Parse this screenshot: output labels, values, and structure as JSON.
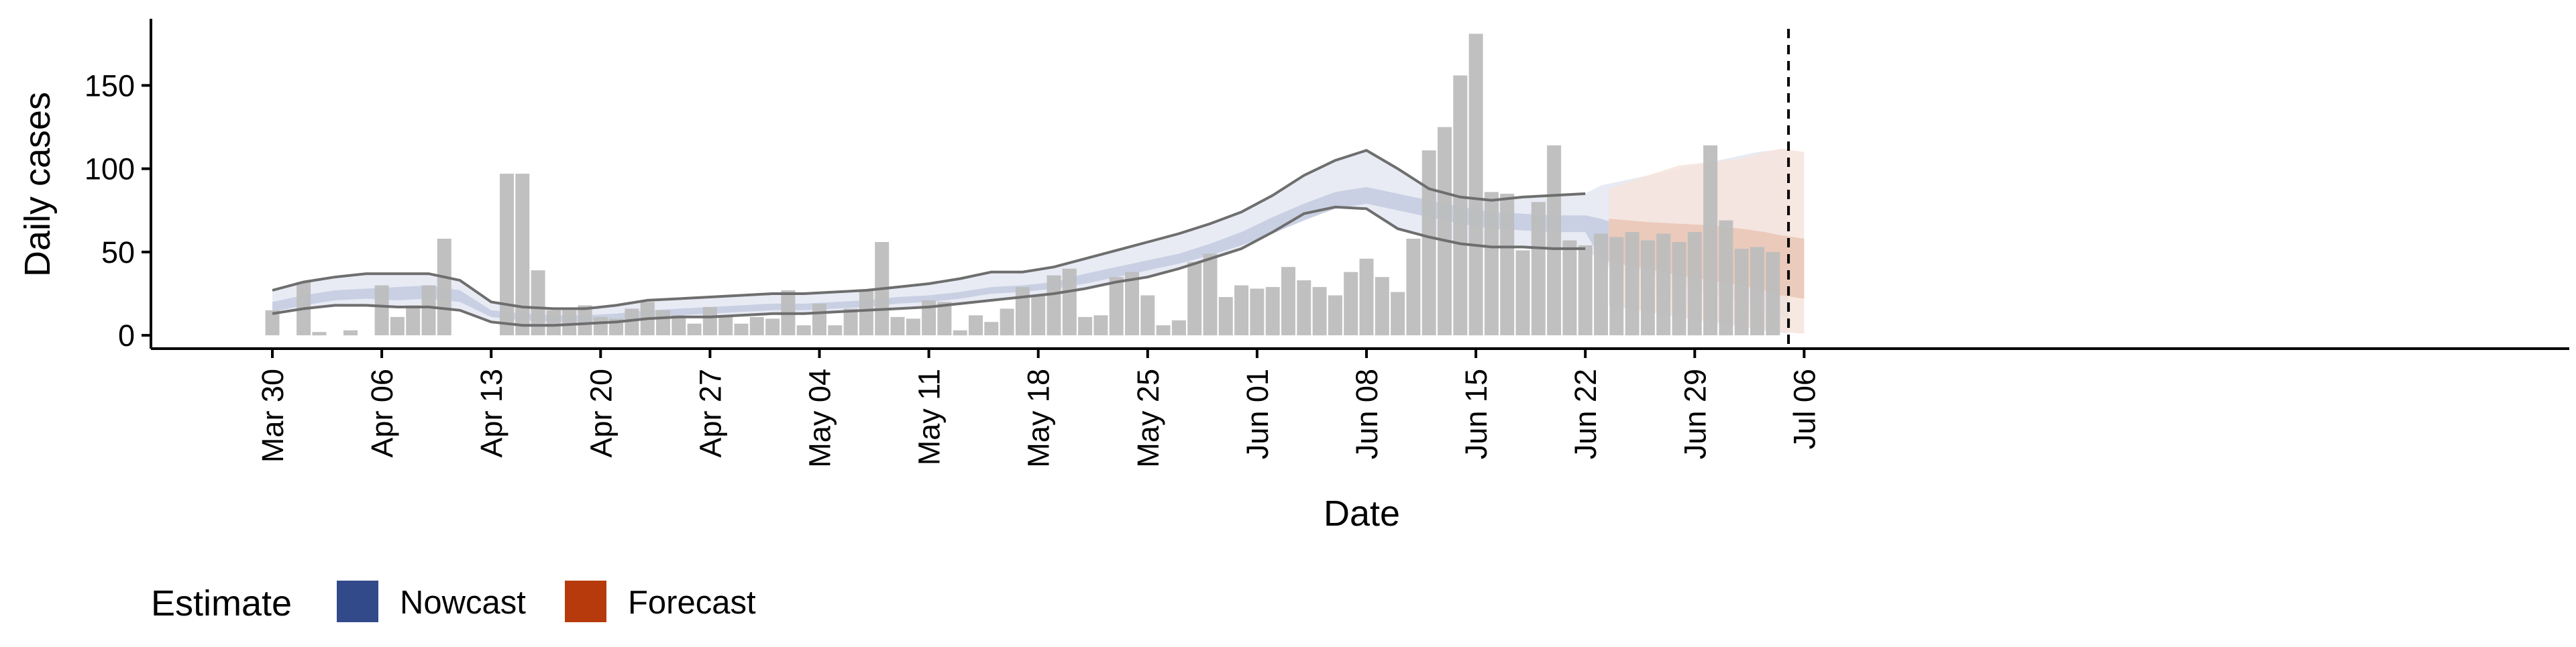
{
  "chart_data": {
    "type": "bar",
    "xlabel": "Date",
    "ylabel": "Daily cases",
    "x_start": "2020-03-30",
    "y_ticks": [
      0,
      50,
      100,
      150
    ],
    "ylim": [
      -8,
      190
    ],
    "x_ticks": [
      {
        "label": "Mar 30",
        "day": 0
      },
      {
        "label": "Apr 06",
        "day": 7
      },
      {
        "label": "Apr 13",
        "day": 14
      },
      {
        "label": "Apr 20",
        "day": 21
      },
      {
        "label": "Apr 27",
        "day": 28
      },
      {
        "label": "May 04",
        "day": 35
      },
      {
        "label": "May 11",
        "day": 42
      },
      {
        "label": "May 18",
        "day": 49
      },
      {
        "label": "May 25",
        "day": 56
      },
      {
        "label": "Jun 01",
        "day": 63
      },
      {
        "label": "Jun 08",
        "day": 70
      },
      {
        "label": "Jun 15",
        "day": 77
      },
      {
        "label": "Jun 22",
        "day": 84
      },
      {
        "label": "Jun 29",
        "day": 91
      },
      {
        "label": "Jul 06",
        "day": 98
      }
    ],
    "reported_cases": [
      15,
      0,
      32,
      2,
      0,
      3,
      0,
      30,
      11,
      18,
      30,
      58,
      0,
      0,
      0,
      97,
      97,
      39,
      15,
      15,
      18,
      11,
      10,
      16,
      20,
      15,
      12,
      7,
      17,
      11,
      7,
      11,
      10,
      27,
      6,
      19,
      6,
      16,
      27,
      56,
      11,
      10,
      21,
      20,
      3,
      12,
      8,
      16,
      29,
      24,
      36,
      40,
      11,
      12,
      35,
      38,
      24,
      6,
      9,
      44,
      49,
      23,
      30,
      28,
      29,
      41,
      33,
      29,
      24,
      38,
      46,
      35,
      26,
      58,
      111,
      125,
      156,
      181,
      86,
      85,
      51,
      80,
      114,
      57,
      54,
      61,
      59,
      62,
      57,
      61,
      56,
      62,
      114,
      69,
      52,
      53,
      50
    ],
    "nowcast": {
      "days": [
        0,
        2,
        4,
        6,
        8,
        10,
        12,
        14,
        16,
        18,
        20,
        22,
        24,
        26,
        28,
        30,
        32,
        34,
        36,
        38,
        40,
        42,
        44,
        46,
        48,
        50,
        52,
        54,
        56,
        58,
        60,
        62,
        64,
        66,
        68,
        70,
        72,
        74,
        76,
        78,
        80,
        82,
        84,
        85,
        86,
        87,
        88,
        89,
        90,
        91,
        92,
        93,
        94,
        95,
        96,
        97
      ],
      "median": [
        17,
        21,
        24,
        25,
        25,
        26,
        23,
        13,
        11,
        10,
        10,
        11,
        13,
        14,
        15,
        16,
        17,
        17,
        18,
        19,
        21,
        22,
        24,
        27,
        28,
        30,
        34,
        38,
        42,
        46,
        51,
        58,
        66,
        74,
        81,
        84,
        80,
        76,
        72,
        69,
        68,
        67,
        67,
        58,
        55,
        52,
        49,
        46,
        43,
        40,
        37,
        34,
        31,
        28,
        25,
        22
      ],
      "mid_low": [
        14,
        18,
        21,
        22,
        21,
        22,
        20,
        11,
        9,
        8,
        8,
        9,
        11,
        12,
        13,
        14,
        15,
        15,
        16,
        17,
        19,
        20,
        22,
        25,
        26,
        28,
        31,
        35,
        39,
        43,
        48,
        54,
        61,
        69,
        76,
        79,
        75,
        71,
        67,
        64,
        63,
        62,
        62,
        46,
        43,
        40,
        37,
        34,
        31,
        28,
        25,
        22,
        19,
        16,
        13,
        10
      ],
      "mid_high": [
        20,
        24,
        27,
        28,
        29,
        30,
        27,
        15,
        13,
        12,
        12,
        13,
        15,
        16,
        17,
        18,
        19,
        19,
        20,
        21,
        23,
        24,
        26,
        29,
        30,
        32,
        37,
        41,
        45,
        49,
        55,
        62,
        71,
        79,
        86,
        89,
        85,
        81,
        77,
        74,
        73,
        72,
        72,
        70,
        67,
        64,
        61,
        58,
        55,
        52,
        49,
        46,
        43,
        40,
        37,
        34
      ],
      "outer_low": [
        13,
        16,
        18,
        18,
        17,
        17,
        15,
        8,
        6,
        6,
        7,
        8,
        10,
        11,
        11,
        12,
        13,
        13,
        14,
        15,
        16,
        17,
        19,
        21,
        23,
        25,
        28,
        32,
        35,
        40,
        46,
        52,
        62,
        73,
        77,
        76,
        64,
        59,
        55,
        53,
        53,
        52,
        52,
        44,
        38,
        33,
        28,
        24,
        20,
        16,
        12,
        9,
        6,
        4,
        2,
        1
      ],
      "outer_high": [
        27,
        32,
        35,
        37,
        37,
        37,
        33,
        20,
        17,
        16,
        16,
        18,
        21,
        22,
        23,
        24,
        25,
        25,
        26,
        27,
        29,
        31,
        34,
        38,
        38,
        41,
        46,
        51,
        56,
        61,
        67,
        74,
        84,
        96,
        105,
        111,
        100,
        88,
        83,
        81,
        83,
        84,
        85,
        90,
        92,
        94,
        96,
        98,
        100,
        102,
        104,
        106,
        108,
        110,
        111,
        112
      ]
    },
    "forecast": {
      "days": [
        85.5,
        88,
        90,
        92,
        94,
        95.5,
        96.5,
        98
      ],
      "mid_low": [
        44,
        40,
        36,
        33,
        30,
        27,
        24,
        22
      ],
      "mid_high": [
        70,
        68,
        67,
        66,
        64,
        62,
        60,
        58
      ],
      "outer_low": [
        18,
        14,
        11,
        8,
        5,
        3,
        2,
        1
      ],
      "outer_high": [
        88,
        96,
        102,
        104,
        106,
        110,
        112,
        110
      ]
    },
    "vline_day": 97,
    "legend": {
      "title": "Estimate",
      "items": [
        {
          "label": "Nowcast",
          "color": "#32498a"
        },
        {
          "label": "Forecast",
          "color": "#b73a0c"
        }
      ]
    },
    "colors": {
      "bars": "#bdbdbd",
      "nowcast_outer": "#e4e8f2",
      "nowcast_mid": "#c5cde1",
      "forecast_outer": "#f6e4dc",
      "forecast_mid": "#e9c5b5",
      "bound_line": "#6e6e6e"
    }
  }
}
